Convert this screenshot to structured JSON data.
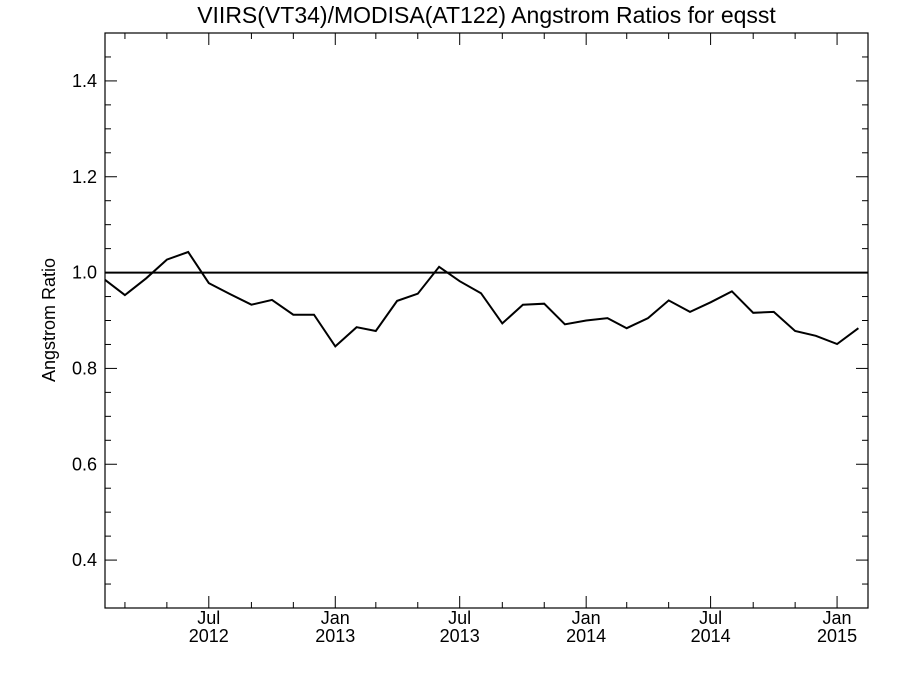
{
  "chart_data": {
    "type": "line",
    "title": "VIIRS(VT34)/MODISA(AT122)  Angstrom Ratios for eqsst",
    "xlabel": "",
    "ylabel": "Angstrom Ratio",
    "xlim": [
      "2012-02-01",
      "2015-02-15"
    ],
    "ylim": [
      0.3,
      1.5
    ],
    "yticks": [
      0.4,
      0.6,
      0.8,
      1.0,
      1.2,
      1.4
    ],
    "ytick_labels": [
      "0.4",
      "0.6",
      "0.8",
      "1.0",
      "1.2",
      "1.4"
    ],
    "xticks": [
      {
        "date": "2012-07-01",
        "month": "Jul",
        "year": "2012"
      },
      {
        "date": "2013-01-01",
        "month": "Jan",
        "year": "2013"
      },
      {
        "date": "2013-07-01",
        "month": "Jul",
        "year": "2013"
      },
      {
        "date": "2014-01-01",
        "month": "Jan",
        "year": "2014"
      },
      {
        "date": "2014-07-01",
        "month": "Jul",
        "year": "2014"
      },
      {
        "date": "2015-01-01",
        "month": "Jan",
        "year": "2015"
      }
    ],
    "reference_line": 1.0,
    "grid": false,
    "series": [
      {
        "color": "#000000",
        "points": [
          {
            "x": "2012-02-01",
            "y": 0.985
          },
          {
            "x": "2012-03-01",
            "y": 0.953
          },
          {
            "x": "2012-04-01",
            "y": 0.988
          },
          {
            "x": "2012-05-01",
            "y": 1.027
          },
          {
            "x": "2012-06-01",
            "y": 1.043
          },
          {
            "x": "2012-07-01",
            "y": 0.978
          },
          {
            "x": "2012-08-01",
            "y": 0.955
          },
          {
            "x": "2012-09-01",
            "y": 0.933
          },
          {
            "x": "2012-10-01",
            "y": 0.943
          },
          {
            "x": "2012-11-01",
            "y": 0.912
          },
          {
            "x": "2012-12-01",
            "y": 0.912
          },
          {
            "x": "2013-01-01",
            "y": 0.846
          },
          {
            "x": "2013-02-01",
            "y": 0.886
          },
          {
            "x": "2013-03-01",
            "y": 0.878
          },
          {
            "x": "2013-04-01",
            "y": 0.941
          },
          {
            "x": "2013-05-01",
            "y": 0.956
          },
          {
            "x": "2013-06-01",
            "y": 1.012
          },
          {
            "x": "2013-07-01",
            "y": 0.982
          },
          {
            "x": "2013-08-01",
            "y": 0.957
          },
          {
            "x": "2013-09-01",
            "y": 0.894
          },
          {
            "x": "2013-10-01",
            "y": 0.933
          },
          {
            "x": "2013-11-01",
            "y": 0.935
          },
          {
            "x": "2013-12-01",
            "y": 0.892
          },
          {
            "x": "2014-01-01",
            "y": 0.9
          },
          {
            "x": "2014-02-01",
            "y": 0.905
          },
          {
            "x": "2014-03-01",
            "y": 0.884
          },
          {
            "x": "2014-04-01",
            "y": 0.905
          },
          {
            "x": "2014-05-01",
            "y": 0.942
          },
          {
            "x": "2014-06-01",
            "y": 0.918
          },
          {
            "x": "2014-07-01",
            "y": 0.938
          },
          {
            "x": "2014-08-01",
            "y": 0.961
          },
          {
            "x": "2014-09-01",
            "y": 0.916
          },
          {
            "x": "2014-10-01",
            "y": 0.918
          },
          {
            "x": "2014-11-01",
            "y": 0.878
          },
          {
            "x": "2014-12-01",
            "y": 0.868
          },
          {
            "x": "2015-01-01",
            "y": 0.851
          },
          {
            "x": "2015-02-01",
            "y": 0.884
          }
        ]
      }
    ]
  }
}
